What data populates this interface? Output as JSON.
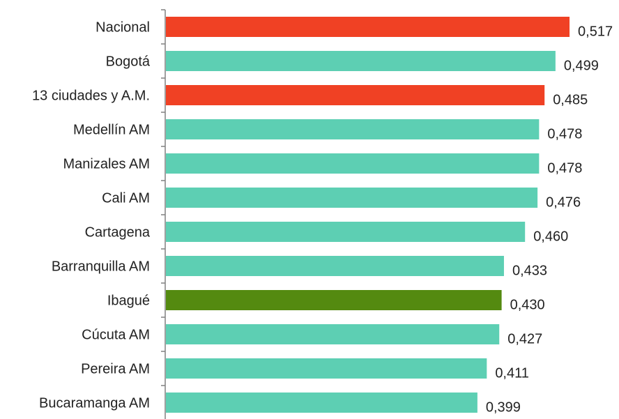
{
  "chart_data": {
    "type": "bar",
    "orientation": "horizontal",
    "title": "",
    "xlabel": "",
    "ylabel": "",
    "categories": [
      "Nacional",
      "Bogotá",
      "13 ciudades y A.M.",
      "Medellín AM",
      "Manizales AM",
      "Cali AM",
      "Cartagena",
      "Barranquilla AM",
      "Ibagué",
      "Cúcuta AM",
      "Pereira AM",
      "Bucaramanga AM"
    ],
    "values": [
      0.517,
      0.499,
      0.485,
      0.478,
      0.478,
      0.476,
      0.46,
      0.433,
      0.43,
      0.427,
      0.411,
      0.399
    ],
    "value_labels": [
      "0,517",
      "0,499",
      "0,485",
      "0,478",
      "0,478",
      "0,476",
      "0,460",
      "0,433",
      "0,430",
      "0,427",
      "0,411",
      "0,399"
    ],
    "bar_colors": [
      "#f04124",
      "#5dcfb3",
      "#f04124",
      "#5dcfb3",
      "#5dcfb3",
      "#5dcfb3",
      "#5dcfb3",
      "#5dcfb3",
      "#548a10",
      "#5dcfb3",
      "#5dcfb3",
      "#5dcfb3"
    ],
    "xlim": [
      0,
      0.53
    ],
    "grid": false,
    "legend": "none"
  }
}
